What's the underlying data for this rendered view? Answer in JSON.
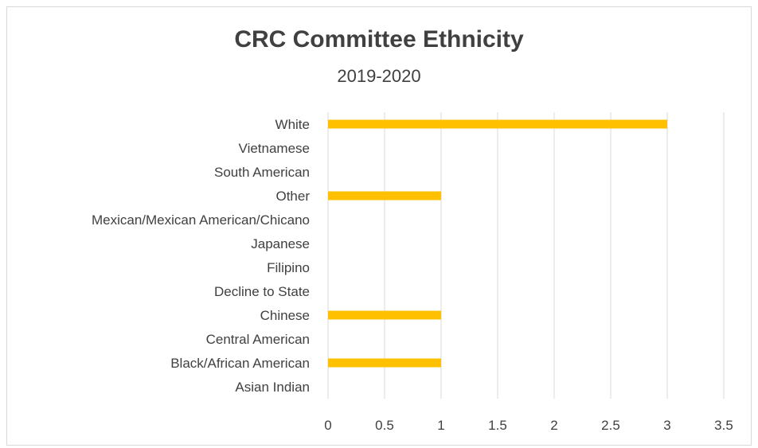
{
  "chart_data": {
    "type": "bar",
    "orientation": "horizontal",
    "title": "CRC Committee Ethnicity",
    "subtitle": "2019-2020",
    "categories": [
      "White",
      "Vietnamese",
      "South American",
      "Other",
      "Mexican/Mexican American/Chicano",
      "Japanese",
      "Filipino",
      "Decline to State",
      "Chinese",
      "Central American",
      "Black/African American",
      "Asian Indian"
    ],
    "values": [
      3,
      0,
      0,
      1,
      0,
      0,
      0,
      0,
      1,
      0,
      1,
      0
    ],
    "xlim": [
      0,
      3.5
    ],
    "x_ticks": [
      "0",
      "0.5",
      "1",
      "1.5",
      "2",
      "2.5",
      "3",
      "3.5"
    ],
    "grid": true,
    "bar_color": "#FFC000",
    "grid_color": "#d9d9d9"
  }
}
